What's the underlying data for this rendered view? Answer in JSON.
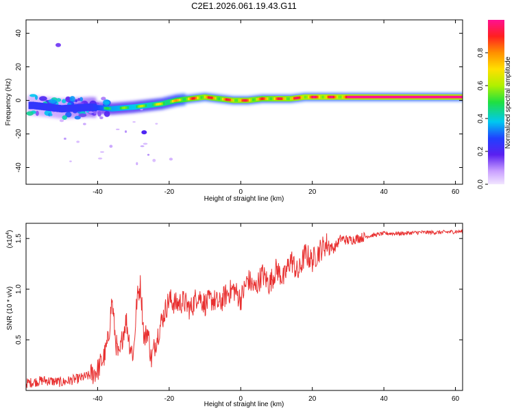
{
  "figure": {
    "title": "C2E1.2026.061.19.43.G11"
  },
  "chart_data": [
    {
      "type": "heatmap",
      "panel": "top",
      "xlabel": "Height of straight line (km)",
      "ylabel": "Frequency (Hz)",
      "xlim": [
        -60,
        62
      ],
      "ylim": [
        -50,
        48
      ],
      "xticks": [
        -40,
        -20,
        0,
        20,
        40,
        60
      ],
      "yticks": [
        -40,
        -20,
        0,
        20,
        40
      ],
      "colorbar": {
        "label": "Normalized spectral amplitude",
        "range": [
          0.0,
          1.0
        ],
        "ticks": [
          0.0,
          0.2,
          0.4,
          0.6,
          0.8
        ],
        "colormap": "rainbow"
      },
      "ridge": {
        "description": "dominant frequency vs height",
        "x": [
          -58,
          -50,
          -42,
          -36,
          -30,
          -26,
          -22,
          -18,
          -14,
          -10,
          -6,
          -2,
          2,
          6,
          10,
          14,
          18,
          22,
          26,
          30,
          40,
          50,
          62
        ],
        "y": [
          -3,
          -5,
          -4,
          -5,
          -4,
          -3,
          -2,
          0,
          1,
          2,
          1,
          0,
          0,
          1,
          1,
          1,
          2,
          2,
          2,
          2,
          2,
          2,
          2
        ],
        "amplitude": [
          0.2,
          0.25,
          0.35,
          0.55,
          0.6,
          0.65,
          0.7,
          0.8,
          0.9,
          0.95,
          0.9,
          0.95,
          0.95,
          0.9,
          0.95,
          0.95,
          1.0,
          1.0,
          1.0,
          1.0,
          1.0,
          1.0,
          1.0
        ]
      },
      "outliers": [
        {
          "x": -51,
          "y": 33,
          "amplitude": 0.15
        },
        {
          "x": -27,
          "y": -19,
          "amplitude": 0.2
        }
      ]
    },
    {
      "type": "line",
      "panel": "bottom",
      "xlabel": "Height of straight line (km)",
      "ylabel": "SNR (10 * v/v)",
      "scale_label": "(x10",
      "scale_exponent": "4",
      "scale_close": ")",
      "xlim": [
        -60,
        62
      ],
      "ylim": [
        0.0,
        1.65
      ],
      "xticks": [
        -40,
        -20,
        0,
        20,
        40,
        60
      ],
      "yticks": [
        0.5,
        1.0,
        1.5
      ],
      "ytick_labels": [
        "0.5",
        "1.0",
        "1.5"
      ],
      "series": [
        {
          "name": "SNR",
          "color": "#e83030",
          "x": [
            -60,
            -55,
            -50,
            -45,
            -42,
            -40,
            -38,
            -37,
            -36,
            -35,
            -34,
            -33,
            -32,
            -31,
            -30,
            -29,
            -28,
            -27,
            -26,
            -25,
            -24,
            -22,
            -20,
            -18,
            -16,
            -14,
            -12,
            -10,
            -8,
            -6,
            -4,
            -2,
            0,
            2,
            4,
            6,
            8,
            10,
            12,
            14,
            16,
            18,
            20,
            22,
            24,
            26,
            28,
            30,
            35,
            40,
            45,
            50,
            55,
            62
          ],
          "y": [
            0.07,
            0.1,
            0.08,
            0.12,
            0.15,
            0.2,
            0.35,
            0.5,
            0.9,
            0.5,
            0.3,
            0.55,
            0.7,
            0.45,
            0.35,
            0.9,
            1.05,
            0.5,
            0.6,
            0.3,
            0.45,
            0.7,
            0.9,
            0.85,
            0.88,
            0.8,
            0.95,
            0.85,
            0.9,
            0.85,
            0.95,
            1.0,
            0.9,
            1.1,
            1.0,
            1.15,
            1.05,
            1.2,
            1.1,
            1.3,
            1.15,
            1.35,
            1.28,
            1.38,
            1.45,
            1.4,
            1.5,
            1.48,
            1.52,
            1.55,
            1.55,
            1.56,
            1.56,
            1.57
          ]
        }
      ]
    }
  ]
}
